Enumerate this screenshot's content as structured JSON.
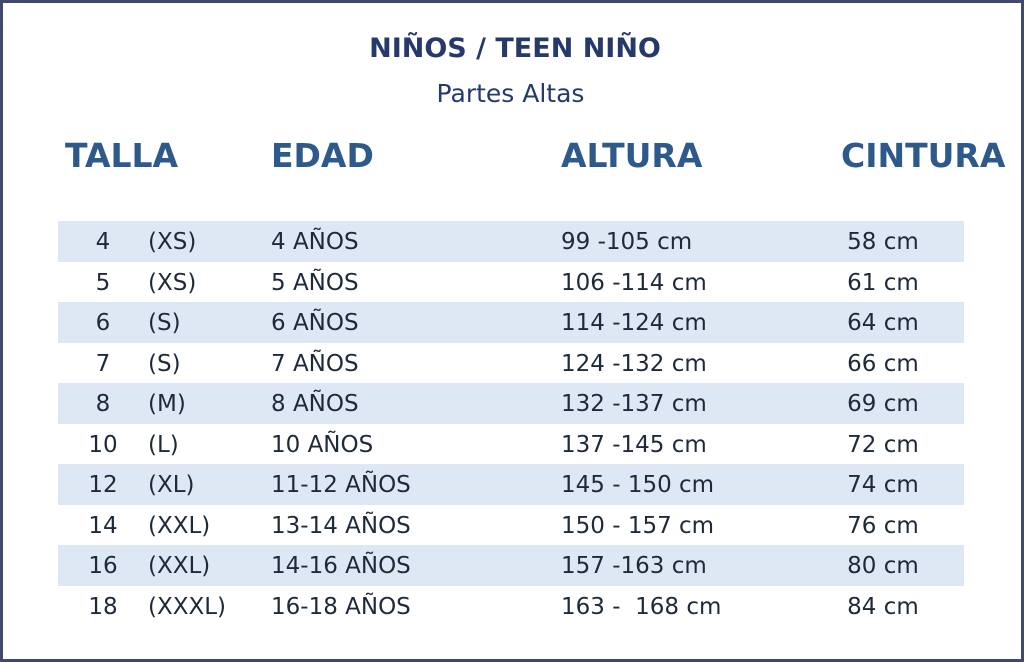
{
  "title": "NIÑOS / TEEN NIÑO",
  "subtitle": "Partes Altas",
  "headers": {
    "talla": "TALLA",
    "edad": "EDAD",
    "altura": "ALTURA",
    "cintura": "CINTURA"
  },
  "rows": [
    {
      "num": "4",
      "size": "(XS)",
      "age": "4 AÑOS",
      "height": "99 -105 cm",
      "waist": "58 cm"
    },
    {
      "num": "5",
      "size": "(XS)",
      "age": "5 AÑOS",
      "height": "106 -114 cm",
      "waist": "61 cm"
    },
    {
      "num": "6",
      "size": "(S)",
      "age": "6 AÑOS",
      "height": "114 -124 cm",
      "waist": "64 cm"
    },
    {
      "num": "7",
      "size": "(S)",
      "age": "7 AÑOS",
      "height": "124 -132 cm",
      "waist": "66 cm"
    },
    {
      "num": "8",
      "size": "(M)",
      "age": "8 AÑOS",
      "height": "132 -137 cm",
      "waist": "69 cm"
    },
    {
      "num": "10",
      "size": "(L)",
      "age": "10 AÑOS",
      "height": "137 -145 cm",
      "waist": "72 cm"
    },
    {
      "num": "12",
      "size": "(XL)",
      "age": "11-12 AÑOS",
      "height": "145 - 150 cm",
      "waist": "74 cm"
    },
    {
      "num": "14",
      "size": "(XXL)",
      "age": "13-14 AÑOS",
      "height": "150 - 157 cm",
      "waist": "76 cm"
    },
    {
      "num": "16",
      "size": "(XXL)",
      "age": "14-16 AÑOS",
      "height": "157 -163 cm",
      "waist": "80 cm"
    },
    {
      "num": "18",
      "size": "(XXXL)",
      "age": "16-18 AÑOS",
      "height": "163 -  168 cm",
      "waist": "84 cm"
    }
  ],
  "colors": {
    "title": "#253a6b",
    "header": "#2d5a8a",
    "shade": "#dde8f4",
    "border": "#3d4a6b"
  }
}
